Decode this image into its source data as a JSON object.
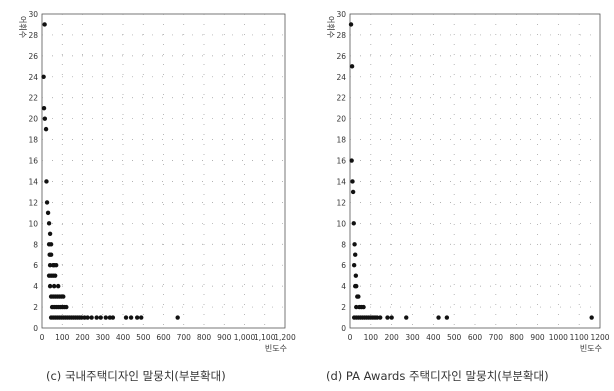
{
  "chart_data": [
    {
      "type": "scatter",
      "ylabel": "어휘수",
      "xlabel": "빈도수",
      "xlim": [
        0,
        1200
      ],
      "ylim": [
        0,
        30
      ],
      "x_tick_labels": [
        "0",
        "100",
        "200",
        "300",
        "400",
        "500",
        "600",
        "700",
        "800",
        "900",
        "1,000",
        "1,100",
        "1,200"
      ],
      "y_tick_labels": [
        "0",
        "2",
        "4",
        "6",
        "8",
        "10",
        "12",
        "14",
        "16",
        "18",
        "20",
        "22",
        "24",
        "26",
        "28",
        "30"
      ],
      "grid": "dotted",
      "caption": "(c) 국내주택디자인 말뭉치(부분확대)",
      "points": [
        [
          13,
          29
        ],
        [
          8,
          24
        ],
        [
          10,
          21
        ],
        [
          14,
          20
        ],
        [
          20,
          19
        ],
        [
          22,
          14
        ],
        [
          25,
          12
        ],
        [
          30,
          11
        ],
        [
          35,
          10
        ],
        [
          40,
          9
        ],
        [
          35,
          8
        ],
        [
          45,
          8
        ],
        [
          38,
          7
        ],
        [
          45,
          7
        ],
        [
          40,
          6
        ],
        [
          55,
          6
        ],
        [
          60,
          6
        ],
        [
          70,
          6
        ],
        [
          35,
          5
        ],
        [
          45,
          5
        ],
        [
          55,
          5
        ],
        [
          65,
          5
        ],
        [
          40,
          4
        ],
        [
          60,
          4
        ],
        [
          80,
          4
        ],
        [
          45,
          3
        ],
        [
          55,
          3
        ],
        [
          65,
          3
        ],
        [
          75,
          3
        ],
        [
          85,
          3
        ],
        [
          95,
          3
        ],
        [
          105,
          3
        ],
        [
          50,
          2
        ],
        [
          60,
          2
        ],
        [
          70,
          2
        ],
        [
          80,
          2
        ],
        [
          90,
          2
        ],
        [
          100,
          2
        ],
        [
          110,
          2
        ],
        [
          120,
          2
        ],
        [
          45,
          1
        ],
        [
          55,
          1
        ],
        [
          65,
          1
        ],
        [
          75,
          1
        ],
        [
          85,
          1
        ],
        [
          95,
          1
        ],
        [
          105,
          1
        ],
        [
          115,
          1
        ],
        [
          125,
          1
        ],
        [
          135,
          1
        ],
        [
          145,
          1
        ],
        [
          155,
          1
        ],
        [
          165,
          1
        ],
        [
          175,
          1
        ],
        [
          185,
          1
        ],
        [
          195,
          1
        ],
        [
          210,
          1
        ],
        [
          225,
          1
        ],
        [
          245,
          1
        ],
        [
          270,
          1
        ],
        [
          290,
          1
        ],
        [
          315,
          1
        ],
        [
          335,
          1
        ],
        [
          350,
          1
        ],
        [
          415,
          1
        ],
        [
          440,
          1
        ],
        [
          470,
          1
        ],
        [
          490,
          1
        ],
        [
          670,
          1
        ]
      ]
    },
    {
      "type": "scatter",
      "ylabel": "어휘수",
      "xlabel": "빈도수",
      "xlim": [
        0,
        1200
      ],
      "ylim": [
        0,
        30
      ],
      "x_tick_labels": [
        "0",
        "100",
        "200",
        "300",
        "400",
        "500",
        "600",
        "700",
        "800",
        "900",
        "1000",
        "1100",
        "1200"
      ],
      "y_tick_labels": [
        "0",
        "2",
        "4",
        "6",
        "8",
        "10",
        "12",
        "14",
        "16",
        "18",
        "20",
        "22",
        "24",
        "26",
        "28",
        "30"
      ],
      "grid": "dotted",
      "caption": "(d) PA Awards 주택디자인 말뭉치(부분확대)",
      "points": [
        [
          5,
          29
        ],
        [
          10,
          25
        ],
        [
          8,
          16
        ],
        [
          12,
          14
        ],
        [
          15,
          13
        ],
        [
          18,
          10
        ],
        [
          22,
          8
        ],
        [
          25,
          7
        ],
        [
          20,
          6
        ],
        [
          28,
          5
        ],
        [
          25,
          4
        ],
        [
          30,
          4
        ],
        [
          35,
          3
        ],
        [
          40,
          3
        ],
        [
          30,
          2
        ],
        [
          45,
          2
        ],
        [
          55,
          2
        ],
        [
          65,
          2
        ],
        [
          20,
          1
        ],
        [
          30,
          1
        ],
        [
          40,
          1
        ],
        [
          50,
          1
        ],
        [
          60,
          1
        ],
        [
          70,
          1
        ],
        [
          80,
          1
        ],
        [
          90,
          1
        ],
        [
          100,
          1
        ],
        [
          110,
          1
        ],
        [
          120,
          1
        ],
        [
          130,
          1
        ],
        [
          145,
          1
        ],
        [
          180,
          1
        ],
        [
          200,
          1
        ],
        [
          270,
          1
        ],
        [
          425,
          1
        ],
        [
          465,
          1
        ],
        [
          1160,
          1
        ]
      ]
    }
  ]
}
